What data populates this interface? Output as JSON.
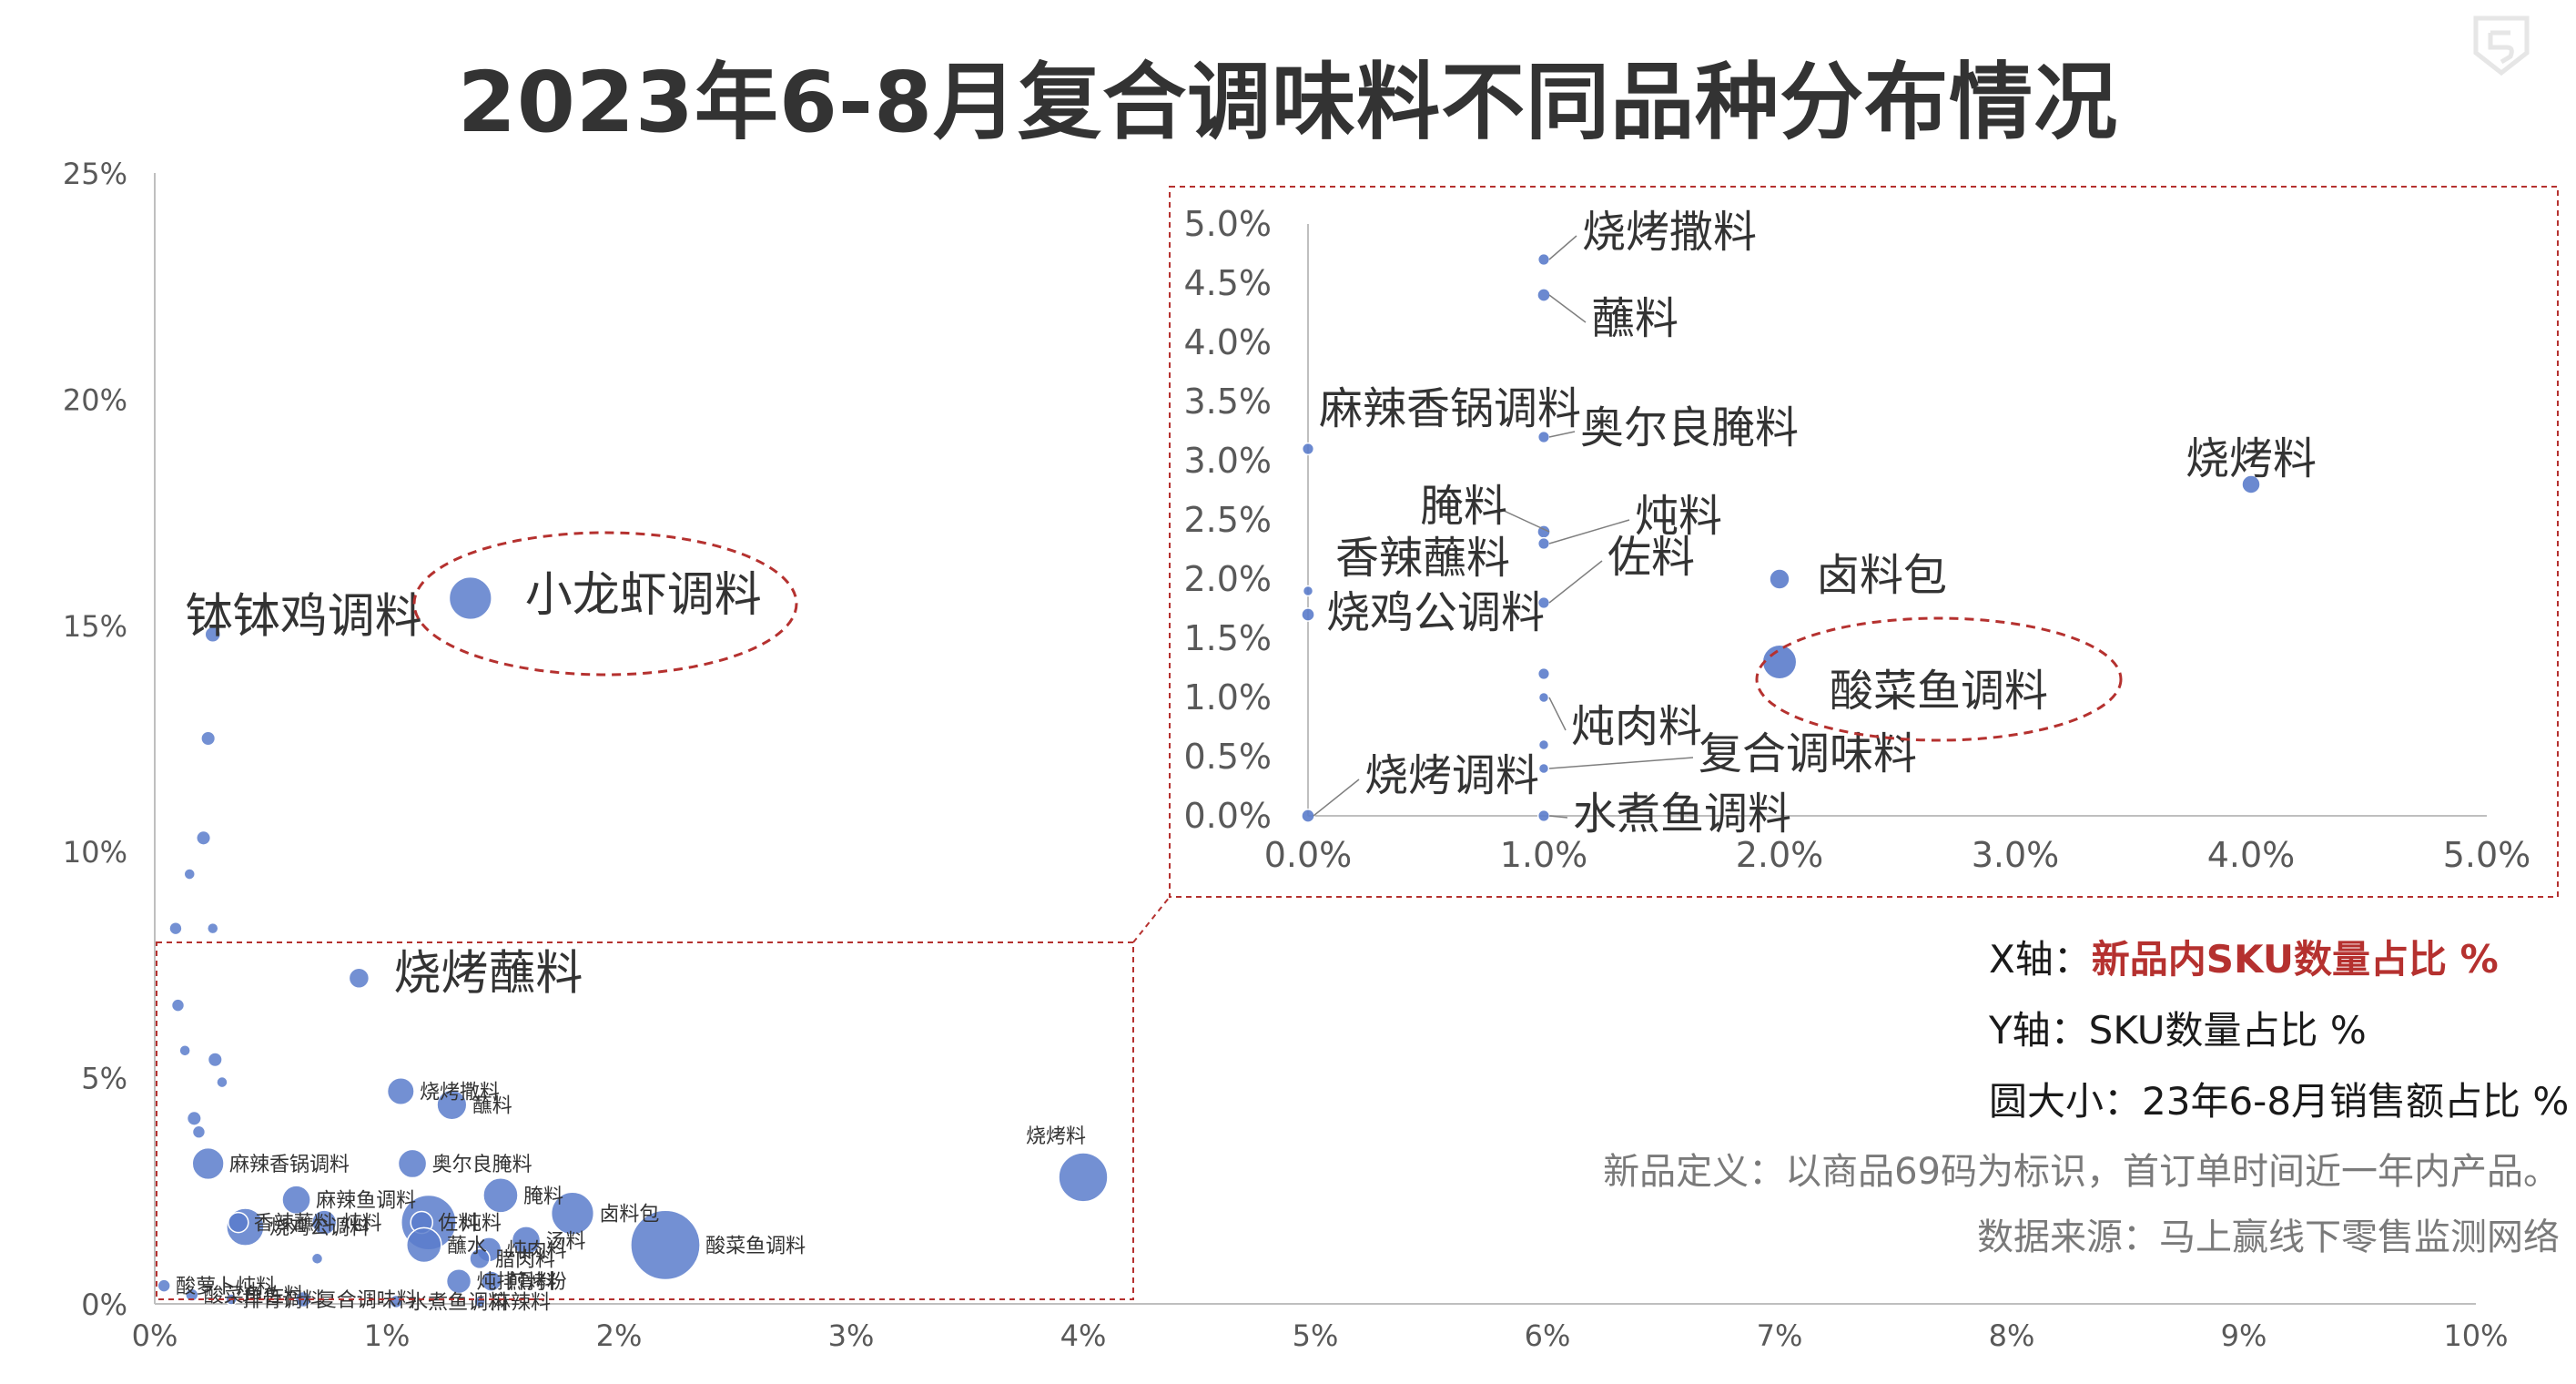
{
  "title": "2023年6-8月复合调味料不同品种分布情况",
  "legend": {
    "x_prefix": "X轴：",
    "x_value": "新品内SKU数量占比 %",
    "y_label": "Y轴：SKU数量占比 %",
    "size_label": "圆大小：23年6-8月销售额占比 %"
  },
  "notes": {
    "definition": "新品定义：以商品69码为标识，首订单时间近一年内产品。",
    "source": "数据来源：马上赢线下零售监测网络"
  },
  "colors": {
    "bubble": "#5b7ccb",
    "callout": "#b5312f",
    "axis": "#bfbfbf",
    "text": "#333333"
  },
  "chart_data": [
    {
      "type": "scatter",
      "xlim": [
        0,
        10
      ],
      "ylim": [
        0,
        25
      ],
      "x_ticks": [
        "0%",
        "1%",
        "2%",
        "3%",
        "4%",
        "5%",
        "6%",
        "7%",
        "8%",
        "9%",
        "10%"
      ],
      "y_ticks": [
        "0%",
        "5%",
        "10%",
        "15%",
        "20%",
        "25%"
      ],
      "points": [
        {
          "label": "小龙虾调料",
          "x": 1.36,
          "y": 15.6,
          "size": 4.5
        },
        {
          "label": "钵钵鸡调料",
          "x": 0.25,
          "y": 14.8,
          "size": 0.6
        },
        {
          "label": "",
          "x": 0.23,
          "y": 12.5,
          "size": 0.5
        },
        {
          "label": "",
          "x": 0.21,
          "y": 10.3,
          "size": 0.5
        },
        {
          "label": "",
          "x": 0.15,
          "y": 9.5,
          "size": 0.3
        },
        {
          "label": "",
          "x": 0.09,
          "y": 8.3,
          "size": 0.4
        },
        {
          "label": "",
          "x": 0.25,
          "y": 8.3,
          "size": 0.3
        },
        {
          "label": "烧烤蘸料",
          "x": 0.88,
          "y": 7.2,
          "size": 1.0
        },
        {
          "label": "",
          "x": 0.1,
          "y": 6.6,
          "size": 0.4
        },
        {
          "label": "",
          "x": 0.13,
          "y": 5.6,
          "size": 0.3
        },
        {
          "label": "",
          "x": 0.26,
          "y": 5.4,
          "size": 0.5
        },
        {
          "label": "",
          "x": 0.29,
          "y": 4.9,
          "size": 0.3
        },
        {
          "label": "烧烤撒料",
          "x": 1.06,
          "y": 4.7,
          "size": 1.8
        },
        {
          "label": "蘸料",
          "x": 1.28,
          "y": 4.4,
          "size": 2.2
        },
        {
          "label": "",
          "x": 0.17,
          "y": 4.1,
          "size": 0.5
        },
        {
          "label": "",
          "x": 0.19,
          "y": 3.8,
          "size": 0.4
        },
        {
          "label": "烧烤料",
          "x": 4.0,
          "y": 2.8,
          "size": 6.0
        },
        {
          "label": "麻辣香锅调料",
          "x": 0.23,
          "y": 3.1,
          "size": 2.5
        },
        {
          "label": "奥尔良腌料",
          "x": 1.11,
          "y": 3.1,
          "size": 2.0
        },
        {
          "label": "腌料",
          "x": 1.49,
          "y": 2.4,
          "size": 3.0
        },
        {
          "label": "麻辣鱼调料",
          "x": 0.61,
          "y": 2.3,
          "size": 2.0
        },
        {
          "label": "卤料包",
          "x": 1.8,
          "y": 2.0,
          "size": 4.5
        },
        {
          "label": "酸菜鱼调料",
          "x": 2.2,
          "y": 1.3,
          "size": 12.0
        },
        {
          "label": "炖料",
          "x": 1.18,
          "y": 1.8,
          "size": 7.5
        },
        {
          "label": "佐料",
          "x": 1.15,
          "y": 1.8,
          "size": 1.2
        },
        {
          "label": "烧鸡公调料",
          "x": 0.39,
          "y": 1.7,
          "size": 3.5
        },
        {
          "label": "香辣蘸料",
          "x": 0.36,
          "y": 1.8,
          "size": 1.0
        },
        {
          "label": "炖料",
          "x": 0.73,
          "y": 1.8,
          "size": 1.5
        },
        {
          "label": "蘸水",
          "x": 1.16,
          "y": 1.3,
          "size": 3.0
        },
        {
          "label": "汤料",
          "x": 1.6,
          "y": 1.4,
          "size": 2.0
        },
        {
          "label": "炖肉料",
          "x": 1.44,
          "y": 1.2,
          "size": 1.5
        },
        {
          "label": "腊肉料",
          "x": 1.4,
          "y": 1.0,
          "size": 1.0
        },
        {
          "label": "炖排骨料",
          "x": 1.31,
          "y": 0.5,
          "size": 1.5
        },
        {
          "label": "煎烤粉",
          "x": 1.45,
          "y": 0.5,
          "size": 1.0
        },
        {
          "label": "",
          "x": 0.7,
          "y": 1.0,
          "size": 0.3
        },
        {
          "label": "酸萝卜炖料",
          "x": 0.04,
          "y": 0.4,
          "size": 0.4
        },
        {
          "label": "酸菜鱼佐料",
          "x": 0.16,
          "y": 0.2,
          "size": 0.4
        },
        {
          "label": "排骨调料",
          "x": 0.33,
          "y": 0.1,
          "size": 0.3
        },
        {
          "label": "复合调味料",
          "x": 0.64,
          "y": 0.1,
          "size": 0.6
        },
        {
          "label": "麻辣料",
          "x": 1.4,
          "y": 0.05,
          "size": 0.3
        },
        {
          "label": "水煮鱼调料",
          "x": 1.04,
          "y": 0.05,
          "size": 0.4
        }
      ]
    },
    {
      "type": "scatter",
      "xlim": [
        0,
        5
      ],
      "ylim": [
        0,
        5
      ],
      "x_ticks": [
        "0.0%",
        "1.0%",
        "2.0%",
        "3.0%",
        "4.0%",
        "5.0%"
      ],
      "y_ticks": [
        "0.0%",
        "0.5%",
        "1.0%",
        "1.5%",
        "2.0%",
        "2.5%",
        "3.0%",
        "3.5%",
        "4.0%",
        "4.5%",
        "5.0%"
      ],
      "points": [
        {
          "label": "烧烤撒料",
          "x": 1.0,
          "y": 4.7,
          "size": 0.4
        },
        {
          "label": "蘸料",
          "x": 1.0,
          "y": 4.4,
          "size": 0.5
        },
        {
          "label": "奥尔良腌料",
          "x": 1.0,
          "y": 3.2,
          "size": 0.4
        },
        {
          "label": "麻辣香锅调料",
          "x": 0.0,
          "y": 3.1,
          "size": 0.4
        },
        {
          "label": "烧烤料",
          "x": 4.0,
          "y": 2.8,
          "size": 1.0
        },
        {
          "label": "腌料",
          "x": 1.0,
          "y": 2.4,
          "size": 0.5
        },
        {
          "label": "炖料",
          "x": 1.0,
          "y": 2.3,
          "size": 0.4
        },
        {
          "label": "香辣蘸料",
          "x": 0.0,
          "y": 1.9,
          "size": 0.3
        },
        {
          "label": "卤料包",
          "x": 2.0,
          "y": 2.0,
          "size": 1.2
        },
        {
          "label": "佐料",
          "x": 1.0,
          "y": 1.8,
          "size": 0.4
        },
        {
          "label": "烧鸡公调料",
          "x": 0.0,
          "y": 1.7,
          "size": 0.5
        },
        {
          "label": "酸菜鱼调料",
          "x": 2.0,
          "y": 1.3,
          "size": 3.5
        },
        {
          "label": "",
          "x": 1.0,
          "y": 1.2,
          "size": 0.4
        },
        {
          "label": "炖肉料",
          "x": 1.0,
          "y": 1.0,
          "size": 0.3
        },
        {
          "label": "",
          "x": 1.0,
          "y": 0.6,
          "size": 0.3
        },
        {
          "label": "复合调味料",
          "x": 1.0,
          "y": 0.4,
          "size": 0.3
        },
        {
          "label": "烧烤调料",
          "x": 0.0,
          "y": 0.0,
          "size": 0.5
        },
        {
          "label": "水煮鱼调料",
          "x": 1.0,
          "y": 0.0,
          "size": 0.4
        }
      ]
    }
  ]
}
